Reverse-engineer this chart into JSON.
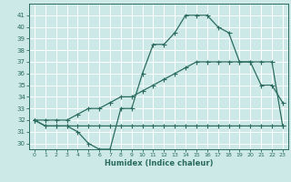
{
  "title": "",
  "xlabel": "Humidex (Indice chaleur)",
  "bg_color": "#cce9e7",
  "grid_color": "#ffffff",
  "line_color": "#2a6b5e",
  "x_values": [
    0,
    1,
    2,
    3,
    4,
    5,
    6,
    7,
    8,
    9,
    10,
    11,
    12,
    13,
    14,
    15,
    16,
    17,
    18,
    19,
    20,
    21,
    22,
    23
  ],
  "line1": [
    32,
    31.5,
    31.5,
    31.5,
    31,
    30,
    29.5,
    29.5,
    33,
    33,
    36,
    38.5,
    38.5,
    39.5,
    41,
    41,
    41,
    40,
    39.5,
    37,
    37,
    35,
    35,
    33.5
  ],
  "line2": [
    32,
    31.5,
    31.5,
    31.5,
    31.5,
    31.5,
    31.5,
    31.5,
    31.5,
    31.5,
    31.5,
    31.5,
    31.5,
    31.5,
    31.5,
    31.5,
    31.5,
    31.5,
    31.5,
    31.5,
    31.5,
    31.5,
    31.5,
    31.5
  ],
  "line3": [
    32,
    32,
    32,
    32,
    32.5,
    33,
    33,
    33.5,
    34,
    34,
    34.5,
    35,
    35.5,
    36,
    36.5,
    37,
    37,
    37,
    37,
    37,
    37,
    37,
    37,
    31.5
  ],
  "xlim": [
    -0.5,
    23.5
  ],
  "ylim": [
    29.5,
    42
  ],
  "yticks": [
    30,
    31,
    32,
    33,
    34,
    35,
    36,
    37,
    38,
    39,
    40,
    41
  ],
  "xticks": [
    0,
    1,
    2,
    3,
    4,
    5,
    6,
    7,
    8,
    9,
    10,
    11,
    12,
    13,
    14,
    15,
    16,
    17,
    18,
    19,
    20,
    21,
    22,
    23
  ]
}
